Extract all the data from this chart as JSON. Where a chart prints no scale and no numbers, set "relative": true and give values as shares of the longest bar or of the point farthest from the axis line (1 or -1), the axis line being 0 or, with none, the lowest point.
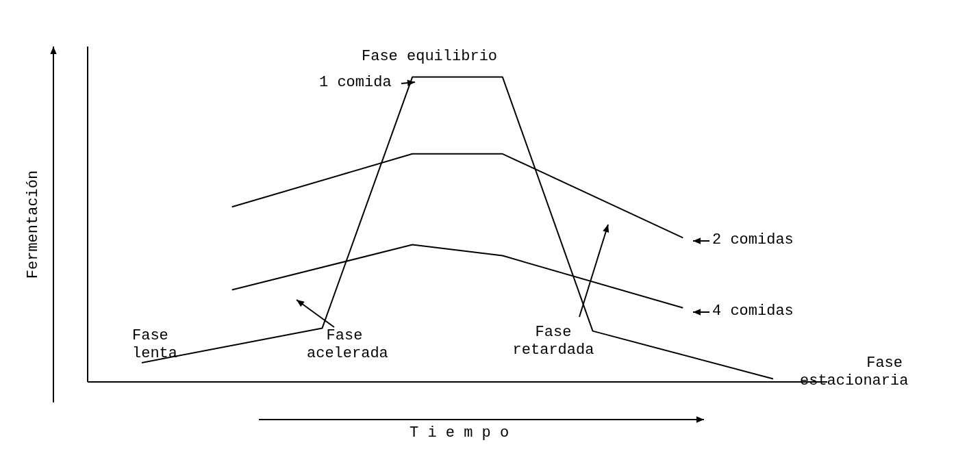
{
  "chart_data": {
    "type": "line",
    "relative": true,
    "ylabel": "Fermentación",
    "xlabel": "T i e m p o",
    "categories": [
      null,
      null,
      null,
      null,
      null,
      null,
      null,
      null
    ],
    "series": [
      {
        "name": "1 comida",
        "color": "#000000",
        "values": [
          0.063,
          null,
          0.176,
          1,
          1,
          0.167,
          null,
          0.01
        ]
      },
      {
        "name": "2 comidas",
        "color": "#000000",
        "values": [
          null,
          0.574,
          null,
          0.748,
          0.748,
          null,
          0.473,
          null
        ]
      },
      {
        "name": "4 comidas",
        "color": "#000000",
        "values": [
          null,
          0.302,
          null,
          0.45,
          0.414,
          null,
          0.243,
          null
        ]
      }
    ],
    "annotations": [
      "Fase equilibrio",
      "Fase lenta",
      "Fase acelerada",
      "Fase retardada",
      "Fase estacionaria"
    ],
    "legend": "right",
    "marker": "none",
    "line_style": "solid"
  }
}
